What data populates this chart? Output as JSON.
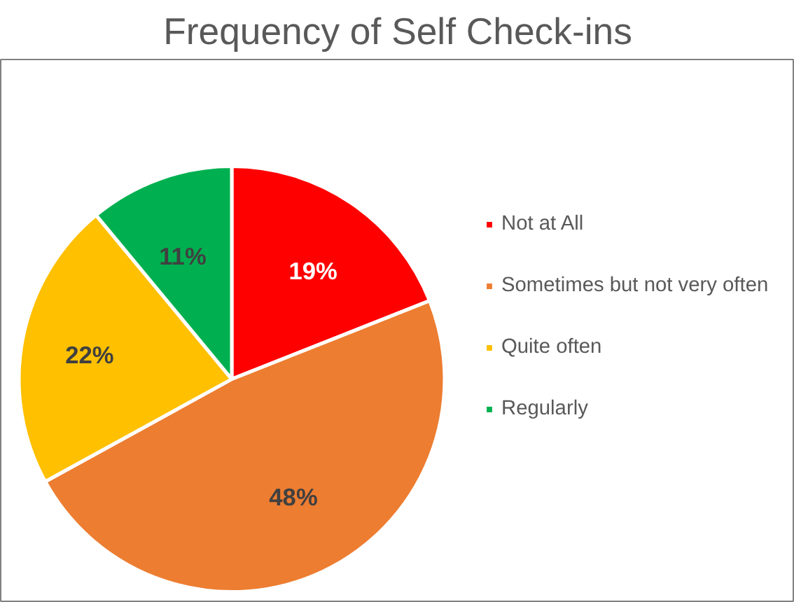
{
  "chart_data": {
    "type": "pie",
    "title": "Frequency of Self Check-ins",
    "categories": [
      "Not at All",
      "Sometimes but not very often",
      "Quite often",
      "Regularly"
    ],
    "values": [
      19,
      48,
      22,
      11
    ],
    "value_labels": [
      "19%",
      "48%",
      "22%",
      "11%"
    ],
    "colors": [
      "#ff0000",
      "#ed7d31",
      "#ffc000",
      "#00b050"
    ],
    "legend": "right"
  }
}
